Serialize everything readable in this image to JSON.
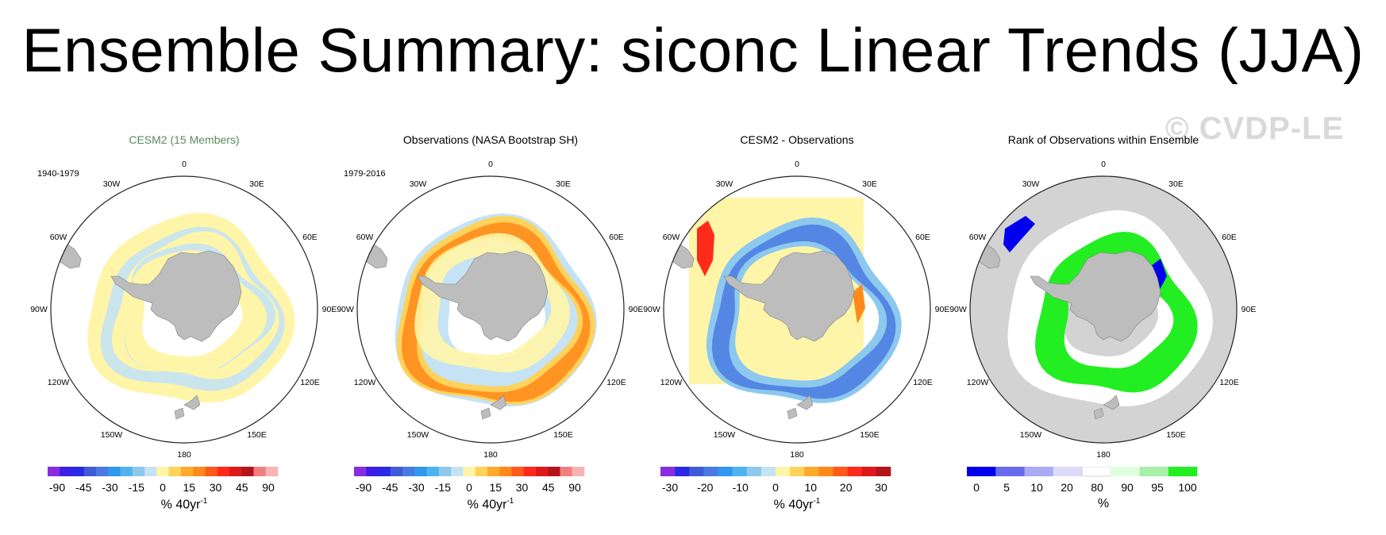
{
  "title": "Ensemble Summary: siconc Linear Trends (JJA)",
  "watermark": "© CVDP-LE",
  "colors": {
    "land": "#bdbdbd",
    "globe_background": "#d3d3d3",
    "grid_border": "#222222",
    "cesm_title": "#5a8a5a",
    "neg_ramp": [
      "#8a2be2",
      "#3c1ee8",
      "#2a2ae6",
      "#3f5bd8",
      "#4a7ae0",
      "#2f98f0",
      "#4fb3f0",
      "#8dc8ee",
      "#c5e3f4"
    ],
    "pos_ramp": [
      "#fff5a8",
      "#ffd25a",
      "#ffaa2a",
      "#ff8a1a",
      "#ff5a1a",
      "#ff2a1a",
      "#dd1a1a",
      "#b5141a",
      "#f08080",
      "#f8b3b3"
    ],
    "rank_ramp": [
      "#0000ee",
      "#6a6aee",
      "#aaaaf5",
      "#dcdcf8",
      "#ffffff",
      "#e0ffe0",
      "#a8f0a8",
      "#22ee22"
    ]
  },
  "lon_labels": [
    "0",
    "30E",
    "60E",
    "90E",
    "120E",
    "150E",
    "180",
    "150W",
    "120W",
    "90W",
    "60W",
    "30W"
  ],
  "panels": [
    {
      "title": "CESM2 (15 Members)",
      "period": "1940-1979",
      "kind": "trend",
      "colorbar_ticks": [
        "-90",
        "-45",
        "-30",
        "-15",
        "0",
        "15",
        "30",
        "45",
        "90"
      ],
      "units_base": "% 40yr",
      "units_exp": "-1"
    },
    {
      "title": "Observations (NASA Bootstrap SH)",
      "period": "1979-2016",
      "kind": "trend",
      "colorbar_ticks": [
        "-90",
        "-45",
        "-30",
        "-15",
        "0",
        "15",
        "30",
        "45",
        "90"
      ],
      "units_base": "% 40yr",
      "units_exp": "-1"
    },
    {
      "title": "CESM2 - Observations",
      "period": "",
      "kind": "diff",
      "colorbar_ticks": [
        "-30",
        "-20",
        "-10",
        "0",
        "10",
        "20",
        "30"
      ],
      "units_base": "% 40yr",
      "units_exp": "-1"
    },
    {
      "title": "Rank of Observations within Ensemble",
      "period": "",
      "kind": "rank",
      "colorbar_ticks": [
        "0",
        "5",
        "10",
        "20",
        "80",
        "90",
        "95",
        "100"
      ],
      "units_base": "%",
      "units_exp": ""
    }
  ]
}
